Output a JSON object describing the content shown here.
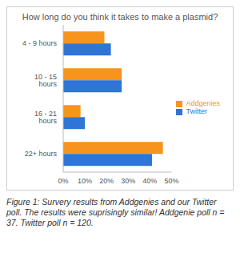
{
  "chart_data": {
    "type": "bar",
    "orientation": "horizontal",
    "title": "How long do you think it takes to make a plasmid?",
    "categories": [
      "4 - 9 hours",
      "10 - 15 hours",
      "16 - 21 hours",
      "22+ hours"
    ],
    "series": [
      {
        "name": "Addgenies",
        "color": "#f7941d",
        "values": [
          19,
          27,
          8,
          46
        ]
      },
      {
        "name": "Twitter",
        "color": "#2e75d6",
        "values": [
          22,
          27,
          10,
          41
        ]
      }
    ],
    "xlim": [
      0,
      50
    ],
    "xticks": [
      {
        "value": 0,
        "label": "0%"
      },
      {
        "value": 10,
        "label": "10%"
      },
      {
        "value": 20,
        "label": "20%"
      },
      {
        "value": 30,
        "label": "30%"
      },
      {
        "value": 40,
        "label": "40%"
      },
      {
        "value": 50,
        "label": "50%"
      }
    ],
    "grid": false,
    "legend": "right"
  },
  "caption": "Figure 1: Survery results from Addgenies and our Twitter poll. The results were suprisingly similar! Addgenie poll n = 37. Twitter poll n = 120."
}
